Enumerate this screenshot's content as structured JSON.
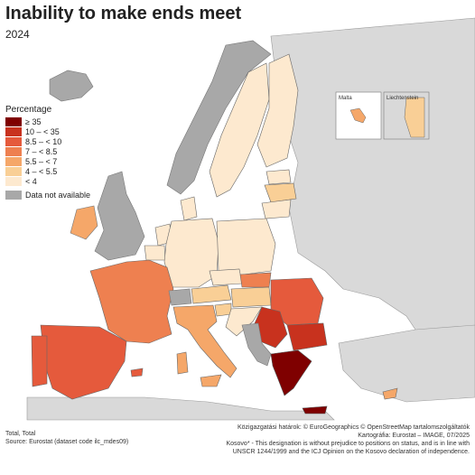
{
  "header": {
    "title": "Inability to make ends meet",
    "subtitle": "2024"
  },
  "legend": {
    "title": "Percentage",
    "items": [
      {
        "label": "≥ 35",
        "color": "#7f0000"
      },
      {
        "label": "10 – < 35",
        "color": "#c8321e"
      },
      {
        "label": "8.5 – < 10",
        "color": "#e55a3c"
      },
      {
        "label": "7 – < 8.5",
        "color": "#ee8050"
      },
      {
        "label": "5.5 – < 7",
        "color": "#f5a769"
      },
      {
        "label": "4 – < 5.5",
        "color": "#f9cf96"
      },
      {
        "label": "< 4",
        "color": "#fde9cf"
      },
      {
        "label": "Data not available",
        "color": "#a8a8a8"
      }
    ]
  },
  "insets": {
    "malta": "Malta",
    "liechtenstein": "Liechtenstein"
  },
  "footer": {
    "left_line1": "Total, Total",
    "left_line2": "Source: Eurostat (dataset code ilc_mdes09)",
    "right_line1": "Közigazgatási határok: © EuroGeographics © OpenStreetMap tartalomszolgáltatók",
    "right_line2": "Kartográfia: Eurostat – IMAGE, 07/2025",
    "right_line3": "Kosovo* - This designation is without prejudice to positions on status, and is in line with",
    "right_line4": "UNSCR 1244/1999 and the ICJ Opinion on the Kosovo declaration of independence."
  },
  "colors": {
    "sea": "#ffffff",
    "non_eu": "#d9d9d9",
    "na": "#a8a8a8"
  }
}
